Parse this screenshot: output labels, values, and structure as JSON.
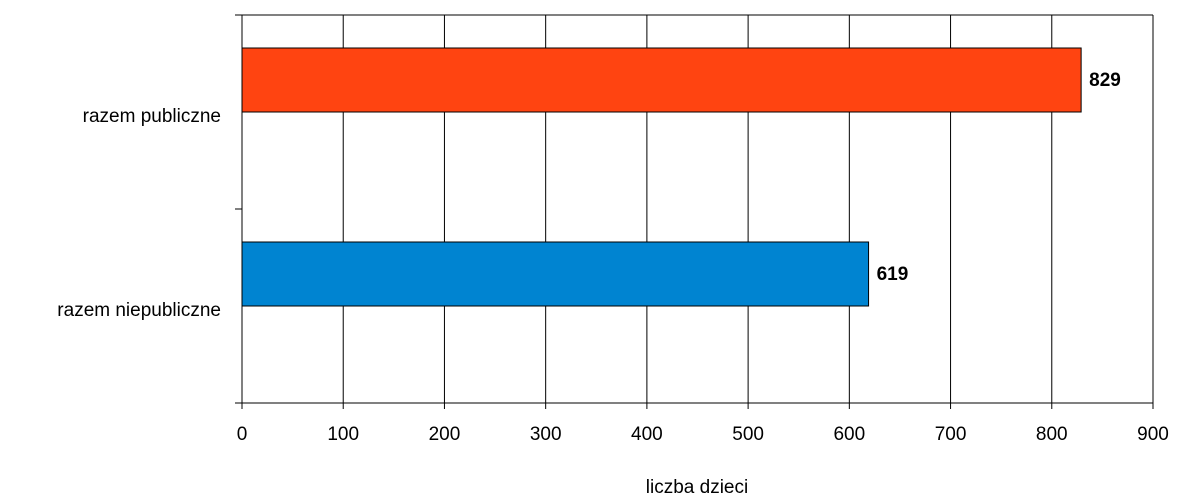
{
  "chart_data": {
    "type": "bar",
    "orientation": "horizontal",
    "categories": [
      "razem publiczne",
      "razem niepubliczne"
    ],
    "values": [
      829,
      619
    ],
    "colors": [
      "#ff4411",
      "#0084d1"
    ],
    "data_labels": [
      "829",
      "619"
    ],
    "xlabel": "liczba dzieci",
    "ylabel": "",
    "xlim": [
      0,
      900
    ],
    "x_ticks": [
      0,
      100,
      200,
      300,
      400,
      500,
      600,
      700,
      800,
      900
    ],
    "x_tick_labels": [
      "0",
      "100",
      "200",
      "300",
      "400",
      "500",
      "600",
      "700",
      "800",
      "900"
    ],
    "grid": true,
    "legend": "none"
  }
}
